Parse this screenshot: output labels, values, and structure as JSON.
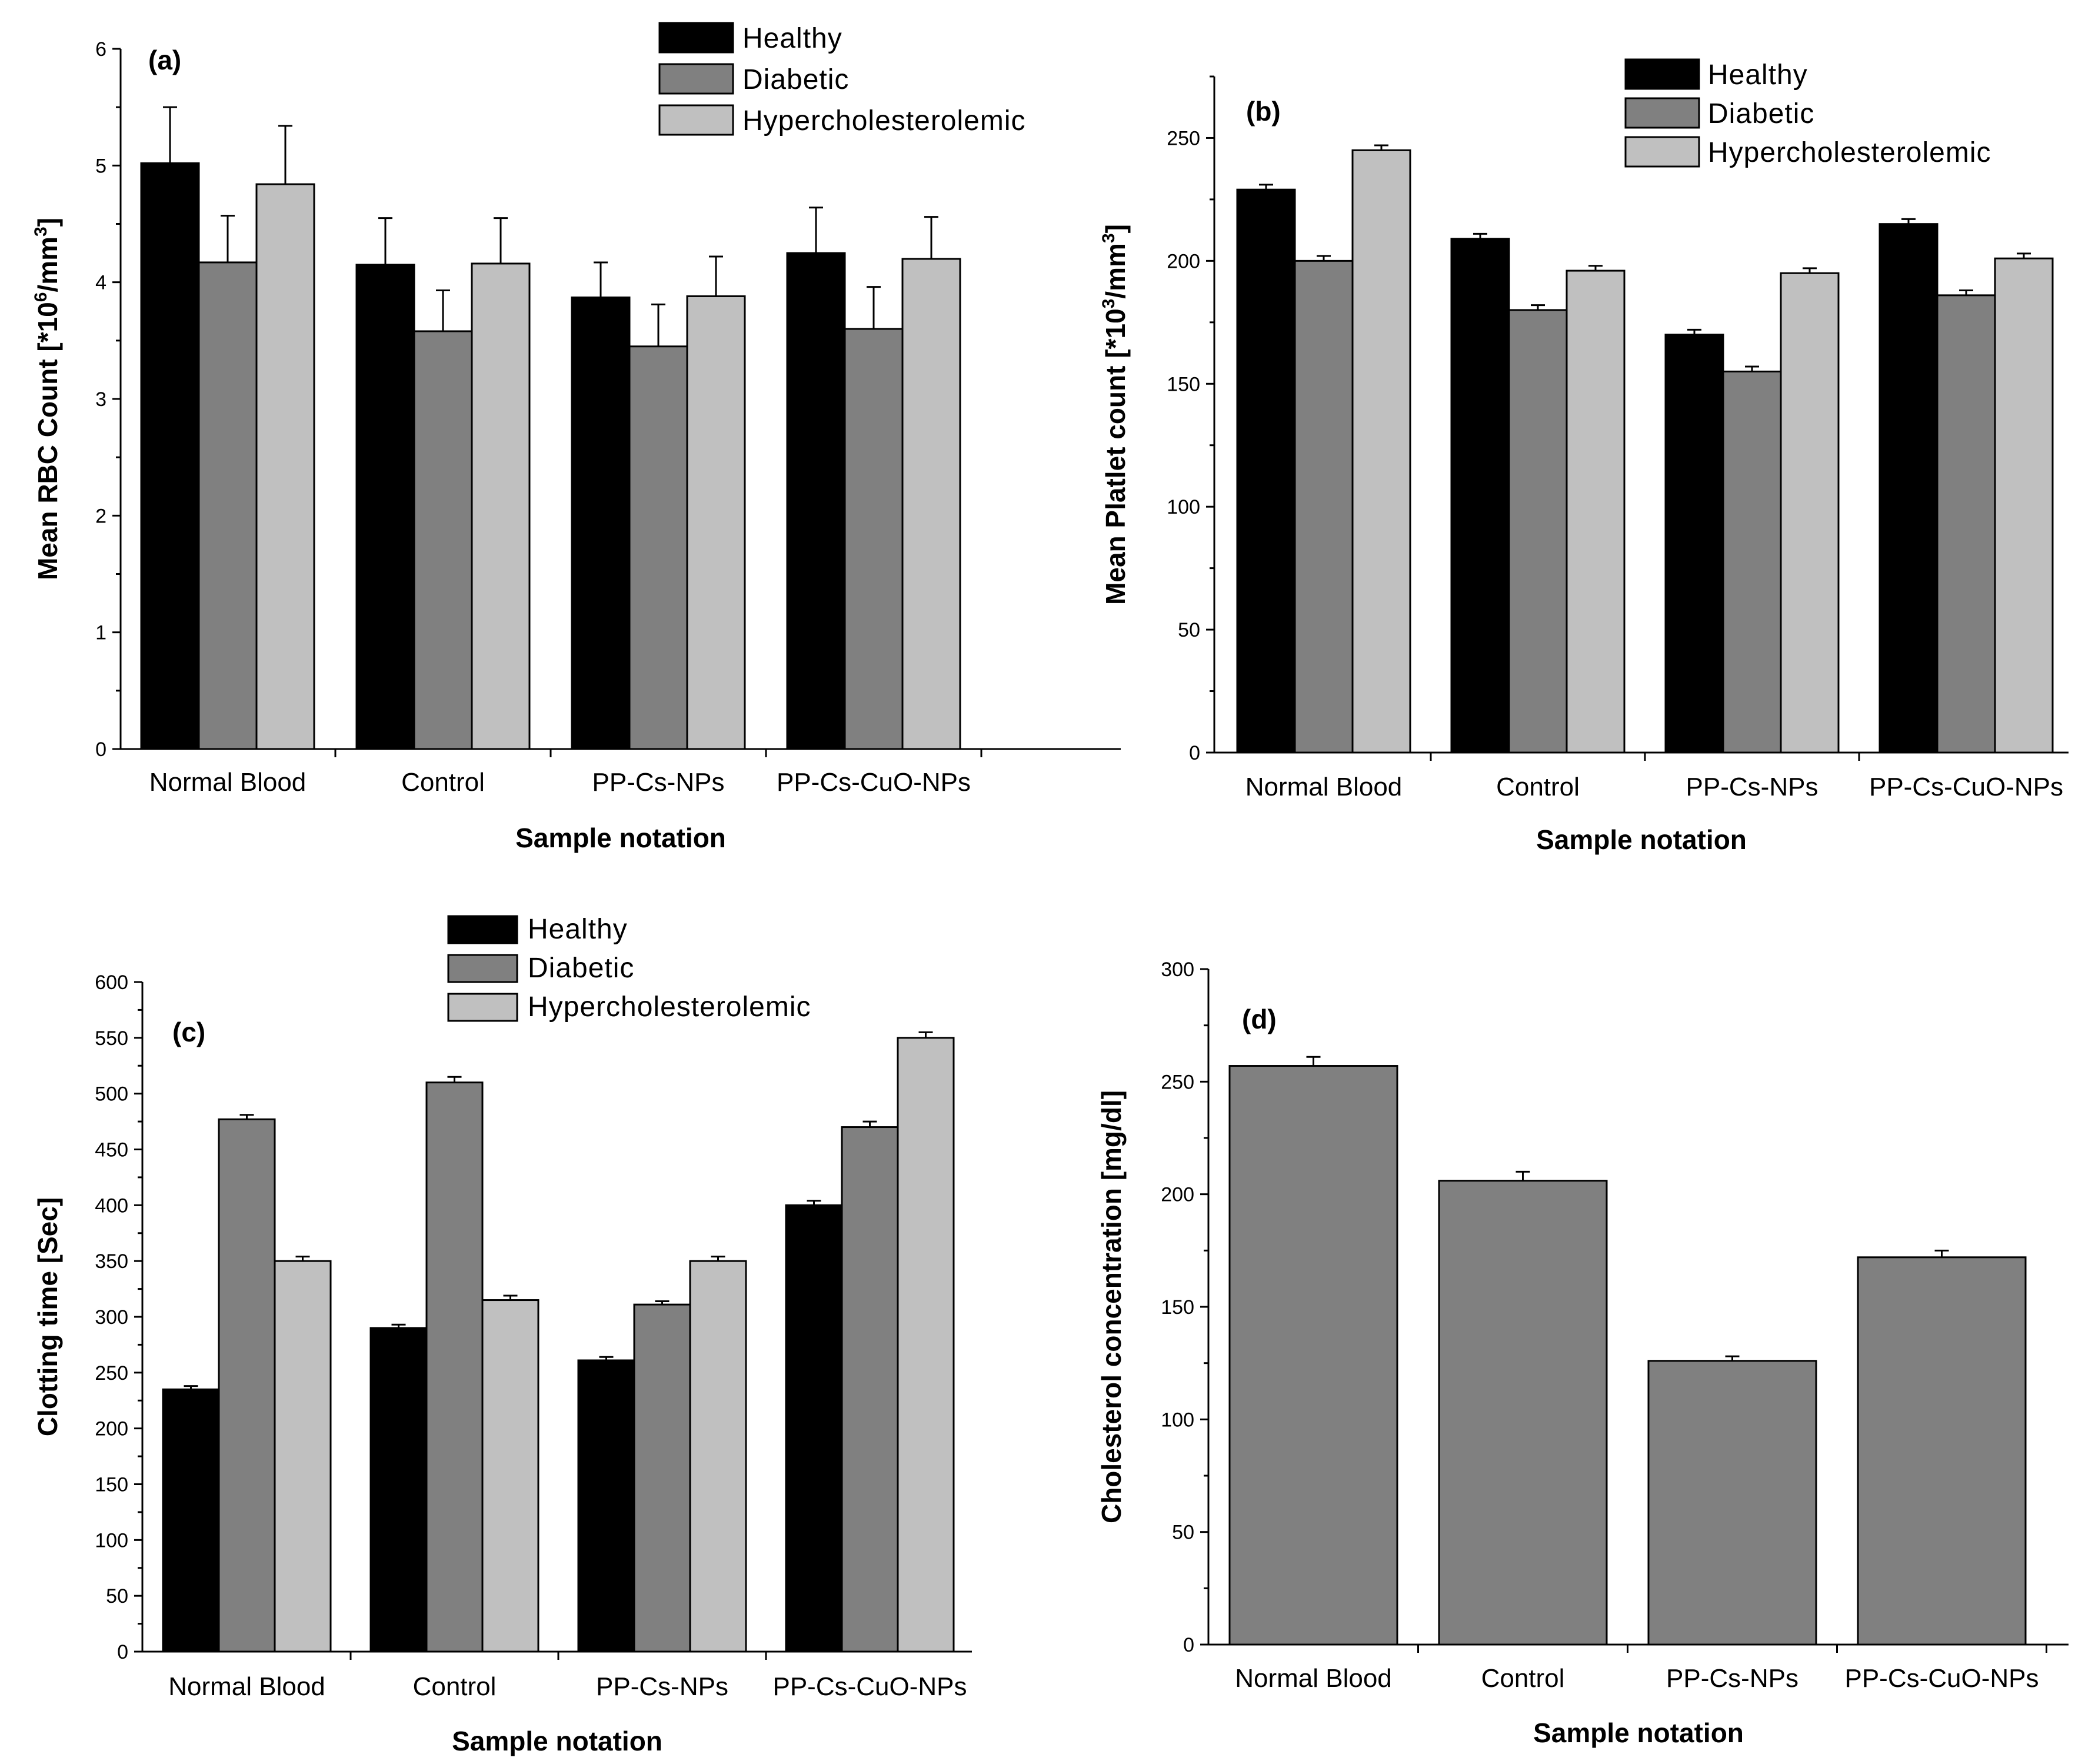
{
  "chart_data": [
    {
      "id": "a",
      "type": "bar",
      "panel_label": "(a)",
      "xlabel": "Sample notation",
      "ylabel_parts": [
        "Mean RBC Count [*10",
        "6",
        "/mm",
        "3",
        "]"
      ],
      "ylim": [
        0,
        6
      ],
      "yticks": [
        0,
        1,
        2,
        3,
        4,
        5,
        6
      ],
      "categories": [
        "Normal Blood",
        "Control",
        "PP-Cs-NPs",
        "PP-Cs-CuO-NPs"
      ],
      "series": [
        {
          "name": "Healthy",
          "color": "#000000",
          "values": [
            5.02,
            4.15,
            3.87,
            4.25
          ],
          "errors": [
            0.48,
            0.4,
            0.3,
            0.39
          ]
        },
        {
          "name": "Diabetic",
          "color": "#808080",
          "values": [
            4.17,
            3.58,
            3.45,
            3.6
          ],
          "errors": [
            0.4,
            0.35,
            0.36,
            0.36
          ]
        },
        {
          "name": "Hypercholesterolemic",
          "color": "#c0c0c0",
          "values": [
            4.84,
            4.16,
            3.88,
            4.2
          ],
          "errors": [
            0.5,
            0.39,
            0.34,
            0.36
          ]
        }
      ],
      "legend_position": "top-right"
    },
    {
      "id": "b",
      "type": "bar",
      "panel_label": "(b)",
      "xlabel": "Sample notation",
      "ylabel_parts": [
        "Mean Platlet count [*10",
        "3",
        "/mm",
        "3",
        "]"
      ],
      "ylim": [
        0,
        275
      ],
      "yticks": [
        0,
        50,
        100,
        150,
        200,
        250
      ],
      "categories": [
        "Normal Blood",
        "Control",
        "PP-Cs-NPs",
        "PP-Cs-CuO-NPs"
      ],
      "series": [
        {
          "name": "Healthy",
          "color": "#000000",
          "values": [
            229,
            209,
            170,
            215
          ],
          "errors": [
            2,
            2,
            2,
            2
          ]
        },
        {
          "name": "Diabetic",
          "color": "#808080",
          "values": [
            200,
            180,
            155,
            186
          ],
          "errors": [
            2,
            2,
            2,
            2
          ]
        },
        {
          "name": "Hypercholesterolemic",
          "color": "#c0c0c0",
          "values": [
            245,
            196,
            195,
            201
          ],
          "errors": [
            2,
            2,
            2,
            2
          ]
        }
      ],
      "legend_position": "top-right"
    },
    {
      "id": "c",
      "type": "bar",
      "panel_label": "(c)",
      "xlabel": "Sample notation",
      "ylabel_parts": [
        "Clotting time [Sec]"
      ],
      "ylim": [
        0,
        600
      ],
      "yticks": [
        0,
        50,
        100,
        150,
        200,
        250,
        300,
        350,
        400,
        450,
        500,
        550,
        600
      ],
      "categories": [
        "Normal Blood",
        "Control",
        "PP-Cs-NPs",
        "PP-Cs-CuO-NPs"
      ],
      "series": [
        {
          "name": "Healthy",
          "color": "#000000",
          "values": [
            235,
            290,
            261,
            400
          ],
          "errors": [
            3,
            3,
            3,
            4
          ]
        },
        {
          "name": "Diabetic",
          "color": "#808080",
          "values": [
            477,
            510,
            311,
            470
          ],
          "errors": [
            4,
            5,
            3,
            5
          ]
        },
        {
          "name": "Hypercholesterolemic",
          "color": "#c0c0c0",
          "values": [
            350,
            315,
            350,
            550
          ],
          "errors": [
            4,
            4,
            4,
            5
          ]
        }
      ],
      "legend_position": "top-center"
    },
    {
      "id": "d",
      "type": "bar",
      "panel_label": "(d)",
      "xlabel": "Sample notation",
      "ylabel_parts": [
        "Cholesterol concentration [mg/dl]"
      ],
      "ylim": [
        0,
        300
      ],
      "yticks": [
        0,
        50,
        100,
        150,
        200,
        250,
        300
      ],
      "categories": [
        "Normal Blood",
        "Control",
        "PP-Cs-NPs",
        "PP-Cs-CuO-NPs"
      ],
      "series": [
        {
          "name": "Cholesterol",
          "color": "#808080",
          "values": [
            257,
            206,
            126,
            172
          ],
          "errors": [
            4,
            4,
            2,
            3
          ]
        }
      ]
    }
  ]
}
